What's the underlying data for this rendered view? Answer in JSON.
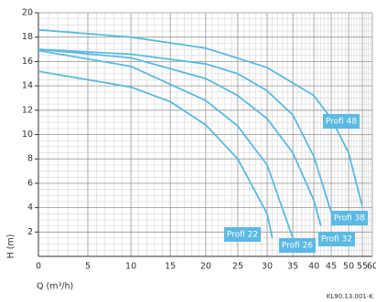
{
  "chart_data": {
    "type": "line",
    "x_label": "Q (m³/h)",
    "y_label": "H (m)",
    "footnote": "KL90.13.001-K",
    "xlim": [
      0,
      60
    ],
    "xticks": [
      0,
      5,
      10,
      15,
      20,
      25,
      30,
      35,
      40,
      45,
      50,
      55,
      60
    ],
    "ylim": [
      0,
      20
    ],
    "yticks": [
      2,
      4,
      6,
      8,
      10,
      12,
      14,
      16,
      18,
      20
    ],
    "grid": true,
    "series": [
      {
        "name": "Profi 22",
        "color": "#5bb9e2",
        "x": [
          0,
          10,
          15,
          20,
          25,
          30,
          31
        ],
        "values": [
          15.2,
          13.9,
          12.7,
          10.8,
          8.0,
          3.5,
          1.5
        ]
      },
      {
        "name": "Profi 26",
        "color": "#5bb9e2",
        "x": [
          0,
          10,
          20,
          25,
          30,
          35
        ],
        "values": [
          16.9,
          15.6,
          12.8,
          10.7,
          7.5,
          1.5
        ]
      },
      {
        "name": "Profi 32",
        "color": "#5bb9e2",
        "x": [
          0,
          10,
          20,
          25,
          30,
          35,
          40,
          42
        ],
        "values": [
          17.0,
          16.3,
          14.6,
          13.2,
          11.3,
          8.5,
          4.6,
          2.5
        ]
      },
      {
        "name": "Profi 38",
        "color": "#5bb9e2",
        "x": [
          0,
          10,
          20,
          25,
          30,
          35,
          40,
          45
        ],
        "values": [
          17.0,
          16.6,
          15.8,
          15.0,
          13.6,
          11.6,
          8.2,
          3.6
        ]
      },
      {
        "name": "Profi 48",
        "color": "#5bb9e2",
        "x": [
          0,
          10,
          20,
          30,
          40,
          45,
          50,
          55
        ],
        "values": [
          18.6,
          18.0,
          17.1,
          15.5,
          13.2,
          11.3,
          8.5,
          4.1
        ]
      }
    ]
  }
}
